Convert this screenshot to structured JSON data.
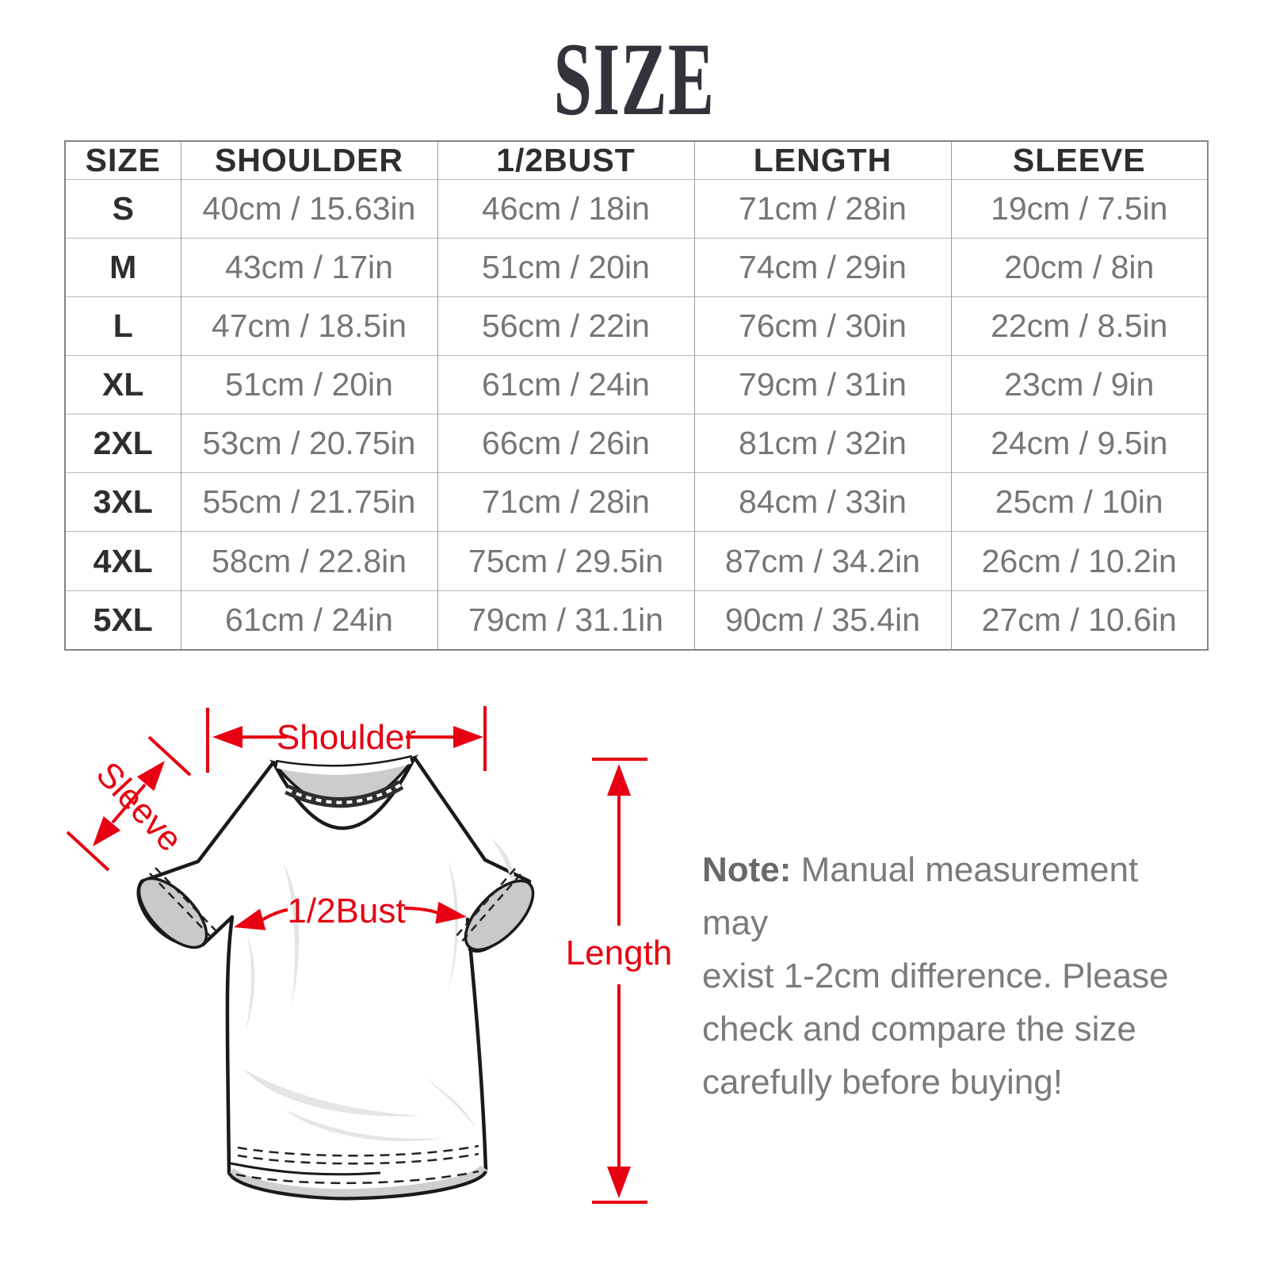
{
  "page": {
    "title": "SIZE"
  },
  "colors": {
    "accent_red": "#e60012",
    "table_text": "#767676",
    "dark_text": "#2e2e2e",
    "border_gray": "#9b9b9b"
  },
  "table": {
    "columns": [
      "SIZE",
      "SHOULDER",
      "1/2BUST",
      "LENGTH",
      "SLEEVE"
    ],
    "rows": [
      {
        "size": "S",
        "cells": [
          "40cm / 15.63in",
          "46cm / 18in",
          "71cm / 28in",
          "19cm / 7.5in"
        ]
      },
      {
        "size": "M",
        "cells": [
          "43cm / 17in",
          "51cm / 20in",
          "74cm / 29in",
          "20cm / 8in"
        ]
      },
      {
        "size": "L",
        "cells": [
          "47cm / 18.5in",
          "56cm / 22in",
          "76cm / 30in",
          "22cm / 8.5in"
        ]
      },
      {
        "size": "XL",
        "cells": [
          "51cm / 20in",
          "61cm / 24in",
          "79cm / 31in",
          "23cm / 9in"
        ]
      },
      {
        "size": "2XL",
        "cells": [
          "53cm / 20.75in",
          "66cm / 26in",
          "81cm / 32in",
          "24cm / 9.5in"
        ]
      },
      {
        "size": "3XL",
        "cells": [
          "55cm / 21.75in",
          "71cm / 28in",
          "84cm / 33in",
          "25cm / 10in"
        ]
      },
      {
        "size": "4XL",
        "cells": [
          "58cm / 22.8in",
          "75cm / 29.5in",
          "87cm / 34.2in",
          "26cm / 10.2in"
        ]
      },
      {
        "size": "5XL",
        "cells": [
          "61cm / 24in",
          "79cm / 31.1in",
          "90cm / 35.4in",
          "27cm / 10.6in"
        ]
      }
    ]
  },
  "diagram": {
    "labels": {
      "shoulder": "Shoulder",
      "sleeve": "Sleeve",
      "half_bust": "1/2Bust",
      "length": "Length"
    }
  },
  "note": {
    "label": "Note:",
    "line1": "Manual measurement may",
    "line2": "exist 1-2cm difference. Please",
    "line3": "check and compare the size",
    "line4": "carefully before buying!"
  }
}
